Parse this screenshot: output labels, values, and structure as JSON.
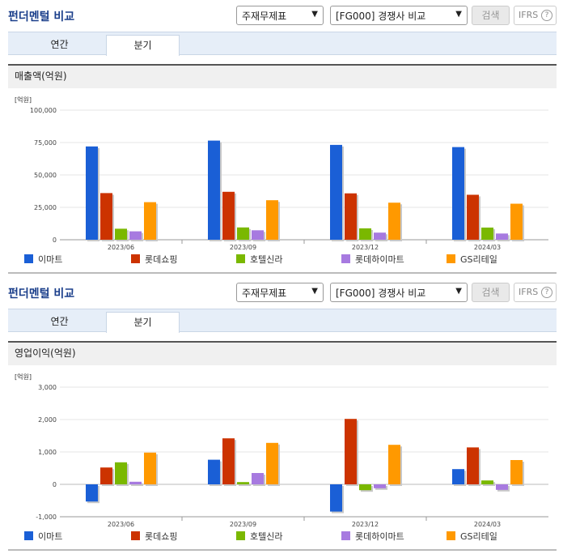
{
  "panels": [
    {
      "title": "펀더멘털 비교",
      "select1": "주재무제표",
      "select2": "[FG000] 경쟁사 비교",
      "search_label": "검색",
      "ifrs_label": "IFRS",
      "ifrs_help": "?",
      "tabs": [
        "연간",
        "분기"
      ],
      "active_tab": 1,
      "metric_title": "매출액(억원)",
      "chart_data": {
        "type": "bar",
        "unit_label": "[억원]",
        "categories": [
          "2023/06",
          "2023/09",
          "2023/12",
          "2024/03"
        ],
        "series": [
          {
            "name": "이마트",
            "color": "#1a5fd6",
            "values": [
              72000,
              76500,
              73200,
              71500
            ]
          },
          {
            "name": "롯데쇼핑",
            "color": "#cc3300",
            "values": [
              36000,
              37000,
              35800,
              34700
            ]
          },
          {
            "name": "호텔신라",
            "color": "#7ab800",
            "values": [
              8500,
              9500,
              8800,
              9400
            ]
          },
          {
            "name": "롯데하이마트",
            "color": "#a77ae0",
            "values": [
              6500,
              7300,
              5500,
              4800
            ]
          },
          {
            "name": "GS리테일",
            "color": "#ff9900",
            "values": [
              29000,
              30500,
              28600,
              27800
            ]
          }
        ],
        "yticks": [
          "100,000",
          "75,000",
          "50,000",
          "25,000",
          "0"
        ],
        "ylim": [
          0,
          100000
        ]
      }
    },
    {
      "title": "펀더멘털 비교",
      "select1": "주재무제표",
      "select2": "[FG000] 경쟁사 비교",
      "search_label": "검색",
      "ifrs_label": "IFRS",
      "ifrs_help": "?",
      "tabs": [
        "연간",
        "분기"
      ],
      "active_tab": 1,
      "metric_title": "영업이익(억원)",
      "chart_data": {
        "type": "bar",
        "unit_label": "[억원]",
        "categories": [
          "2023/06",
          "2023/09",
          "2023/12",
          "2024/03"
        ],
        "series": [
          {
            "name": "이마트",
            "color": "#1a5fd6",
            "values": [
              -530,
              760,
              -840,
              470
            ]
          },
          {
            "name": "롯데쇼핑",
            "color": "#cc3300",
            "values": [
              520,
              1420,
              2020,
              1140
            ]
          },
          {
            "name": "호텔신라",
            "color": "#7ab800",
            "values": [
              680,
              70,
              -180,
              120
            ]
          },
          {
            "name": "롯데하이마트",
            "color": "#a77ae0",
            "values": [
              80,
              350,
              -120,
              -170
            ]
          },
          {
            "name": "GS리테일",
            "color": "#ff9900",
            "values": [
              980,
              1280,
              1220,
              750
            ]
          }
        ],
        "yticks": [
          "3,000",
          "2,000",
          "1,000",
          "0",
          "-1,000"
        ],
        "ylim": [
          -1000,
          3000
        ]
      }
    }
  ]
}
